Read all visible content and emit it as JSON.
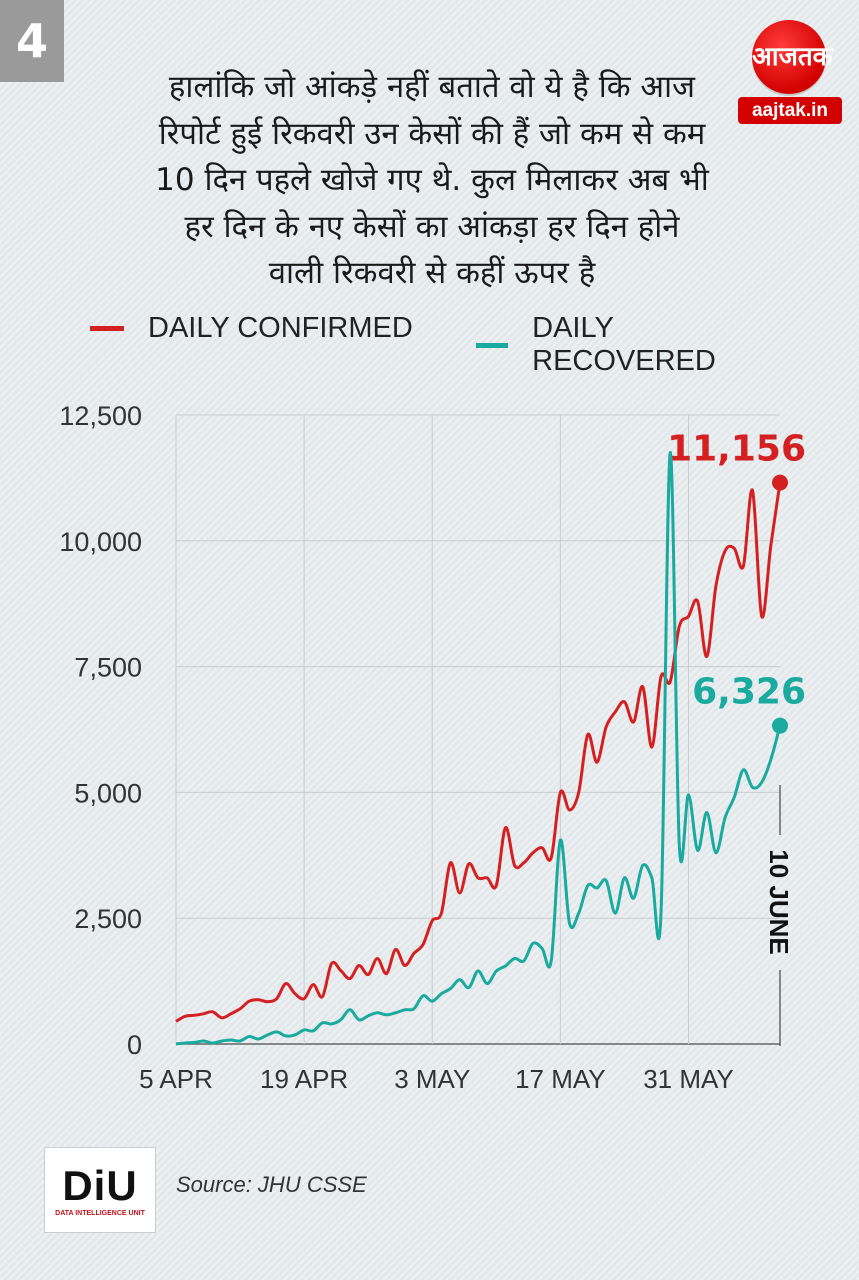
{
  "page_number": "4",
  "brand": {
    "logo_text": "आजतक",
    "site": "aajtak.in"
  },
  "headline_lines": [
    "हालांकि जो आंकड़े नहीं बताते वो ये है कि आज",
    "रिपोर्ट हुई रिकवरी उन केसों की हैं जो कम से कम",
    "10 दिन पहले खोजे गए थे. कुल मिलाकर अब भी",
    "हर दिन के नए केसों का आंकड़ा हर दिन होने",
    "वाली रिकवरी से कहीं ऊपर है"
  ],
  "colors": {
    "confirmed": "#d42020",
    "recovered": "#1aaaa0",
    "grid": "#c9cdd0",
    "axis": "#666666"
  },
  "footer": {
    "logo_mark": "DiU",
    "logo_tag": "DATA INTELLIGENCE UNIT",
    "source": "Source: JHU CSSE"
  },
  "chart_data": {
    "type": "line",
    "title": "",
    "xlabel": "",
    "ylabel": "",
    "ylim": [
      0,
      12500
    ],
    "yticks": [
      0,
      2500,
      5000,
      7500,
      10000,
      12500
    ],
    "ytick_labels": [
      "0",
      "2,500",
      "5,000",
      "7,500",
      "10,000",
      "12,500"
    ],
    "x_range": [
      "2020-04-05",
      "2020-06-10"
    ],
    "xticks": [
      "2020-04-05",
      "2020-04-19",
      "2020-05-03",
      "2020-05-17",
      "2020-05-31"
    ],
    "xtick_labels": [
      "5 APR",
      "19 APR",
      "3 MAY",
      "17 MAY",
      "31 MAY"
    ],
    "grid": true,
    "legend": "top",
    "annotation_date": "10 JUNE",
    "series": [
      {
        "name": "DAILY CONFIRMED",
        "end_label": "11,156",
        "points": [
          [
            "2020-04-05",
            450
          ],
          [
            "2020-04-06",
            550
          ],
          [
            "2020-04-07",
            570
          ],
          [
            "2020-04-08",
            600
          ],
          [
            "2020-04-09",
            640
          ],
          [
            "2020-04-10",
            520
          ],
          [
            "2020-04-11",
            600
          ],
          [
            "2020-04-12",
            700
          ],
          [
            "2020-04-13",
            850
          ],
          [
            "2020-04-14",
            880
          ],
          [
            "2020-04-15",
            840
          ],
          [
            "2020-04-16",
            900
          ],
          [
            "2020-04-17",
            1200
          ],
          [
            "2020-04-18",
            1000
          ],
          [
            "2020-04-19",
            900
          ],
          [
            "2020-04-20",
            1180
          ],
          [
            "2020-04-21",
            940
          ],
          [
            "2020-04-22",
            1600
          ],
          [
            "2020-04-23",
            1460
          ],
          [
            "2020-04-24",
            1300
          ],
          [
            "2020-04-25",
            1560
          ],
          [
            "2020-04-26",
            1380
          ],
          [
            "2020-04-27",
            1700
          ],
          [
            "2020-04-28",
            1400
          ],
          [
            "2020-04-29",
            1880
          ],
          [
            "2020-04-30",
            1560
          ],
          [
            "2020-05-01",
            1800
          ],
          [
            "2020-05-02",
            1980
          ],
          [
            "2020-05-03",
            2450
          ],
          [
            "2020-05-04",
            2600
          ],
          [
            "2020-05-05",
            3600
          ],
          [
            "2020-05-06",
            3000
          ],
          [
            "2020-05-07",
            3580
          ],
          [
            "2020-05-08",
            3300
          ],
          [
            "2020-05-09",
            3300
          ],
          [
            "2020-05-10",
            3150
          ],
          [
            "2020-05-11",
            4300
          ],
          [
            "2020-05-12",
            3550
          ],
          [
            "2020-05-13",
            3600
          ],
          [
            "2020-05-14",
            3800
          ],
          [
            "2020-05-15",
            3900
          ],
          [
            "2020-05-16",
            3700
          ],
          [
            "2020-05-17",
            5000
          ],
          [
            "2020-05-18",
            4650
          ],
          [
            "2020-05-19",
            5000
          ],
          [
            "2020-05-20",
            6150
          ],
          [
            "2020-05-21",
            5600
          ],
          [
            "2020-05-22",
            6300
          ],
          [
            "2020-05-23",
            6600
          ],
          [
            "2020-05-24",
            6800
          ],
          [
            "2020-05-25",
            6400
          ],
          [
            "2020-05-26",
            7100
          ],
          [
            "2020-05-27",
            5900
          ],
          [
            "2020-05-28",
            7300
          ],
          [
            "2020-05-29",
            7200
          ],
          [
            "2020-05-30",
            8300
          ],
          [
            "2020-05-31",
            8500
          ],
          [
            "2020-06-01",
            8800
          ],
          [
            "2020-06-02",
            7700
          ],
          [
            "2020-06-03",
            9100
          ],
          [
            "2020-06-04",
            9800
          ],
          [
            "2020-06-05",
            9850
          ],
          [
            "2020-06-06",
            9500
          ],
          [
            "2020-06-07",
            11000
          ],
          [
            "2020-06-08",
            8500
          ],
          [
            "2020-06-09",
            9900
          ],
          [
            "2020-06-10",
            11156
          ]
        ]
      },
      {
        "name": "DAILY RECOVERED",
        "end_label": "6,326",
        "points": [
          [
            "2020-04-05",
            0
          ],
          [
            "2020-04-06",
            20
          ],
          [
            "2020-04-07",
            30
          ],
          [
            "2020-04-08",
            60
          ],
          [
            "2020-04-09",
            20
          ],
          [
            "2020-04-10",
            60
          ],
          [
            "2020-04-11",
            80
          ],
          [
            "2020-04-12",
            60
          ],
          [
            "2020-04-13",
            150
          ],
          [
            "2020-04-14",
            100
          ],
          [
            "2020-04-15",
            180
          ],
          [
            "2020-04-16",
            240
          ],
          [
            "2020-04-17",
            160
          ],
          [
            "2020-04-18",
            180
          ],
          [
            "2020-04-19",
            280
          ],
          [
            "2020-04-20",
            260
          ],
          [
            "2020-04-21",
            420
          ],
          [
            "2020-04-22",
            400
          ],
          [
            "2020-04-23",
            480
          ],
          [
            "2020-04-24",
            680
          ],
          [
            "2020-04-25",
            480
          ],
          [
            "2020-04-26",
            560
          ],
          [
            "2020-04-27",
            620
          ],
          [
            "2020-04-28",
            580
          ],
          [
            "2020-04-29",
            620
          ],
          [
            "2020-04-30",
            680
          ],
          [
            "2020-05-01",
            700
          ],
          [
            "2020-05-02",
            960
          ],
          [
            "2020-05-03",
            850
          ],
          [
            "2020-05-04",
            1000
          ],
          [
            "2020-05-05",
            1100
          ],
          [
            "2020-05-06",
            1280
          ],
          [
            "2020-05-07",
            1120
          ],
          [
            "2020-05-08",
            1450
          ],
          [
            "2020-05-09",
            1200
          ],
          [
            "2020-05-10",
            1450
          ],
          [
            "2020-05-11",
            1550
          ],
          [
            "2020-05-12",
            1700
          ],
          [
            "2020-05-13",
            1650
          ],
          [
            "2020-05-14",
            2000
          ],
          [
            "2020-05-15",
            1900
          ],
          [
            "2020-05-16",
            1650
          ],
          [
            "2020-05-17",
            4050
          ],
          [
            "2020-05-18",
            2400
          ],
          [
            "2020-05-19",
            2600
          ],
          [
            "2020-05-20",
            3150
          ],
          [
            "2020-05-21",
            3100
          ],
          [
            "2020-05-22",
            3250
          ],
          [
            "2020-05-23",
            2600
          ],
          [
            "2020-05-24",
            3300
          ],
          [
            "2020-05-25",
            2900
          ],
          [
            "2020-05-26",
            3550
          ],
          [
            "2020-05-27",
            3300
          ],
          [
            "2020-05-28",
            2600
          ],
          [
            "2020-05-29",
            11750
          ],
          [
            "2020-05-30",
            3950
          ],
          [
            "2020-05-31",
            4950
          ],
          [
            "2020-06-01",
            3850
          ],
          [
            "2020-06-02",
            4600
          ],
          [
            "2020-06-03",
            3800
          ],
          [
            "2020-06-04",
            4500
          ],
          [
            "2020-06-05",
            4900
          ],
          [
            "2020-06-06",
            5450
          ],
          [
            "2020-06-07",
            5100
          ],
          [
            "2020-06-08",
            5200
          ],
          [
            "2020-06-09",
            5650
          ],
          [
            "2020-06-10",
            6326
          ]
        ]
      }
    ]
  }
}
